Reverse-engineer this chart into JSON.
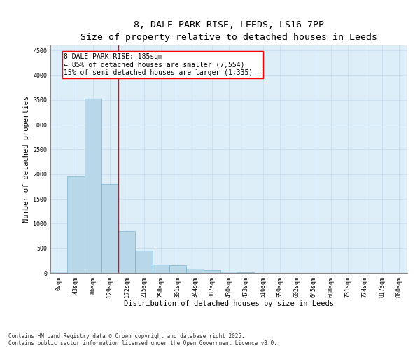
{
  "title_line1": "8, DALE PARK RISE, LEEDS, LS16 7PP",
  "title_line2": "Size of property relative to detached houses in Leeds",
  "xlabel": "Distribution of detached houses by size in Leeds",
  "ylabel": "Number of detached properties",
  "categories": [
    "0sqm",
    "43sqm",
    "86sqm",
    "129sqm",
    "172sqm",
    "215sqm",
    "258sqm",
    "301sqm",
    "344sqm",
    "387sqm",
    "430sqm",
    "473sqm",
    "516sqm",
    "559sqm",
    "602sqm",
    "645sqm",
    "688sqm",
    "731sqm",
    "774sqm",
    "817sqm",
    "860sqm"
  ],
  "values": [
    30,
    1950,
    3520,
    1800,
    850,
    450,
    170,
    155,
    90,
    55,
    30,
    15,
    5,
    3,
    2,
    1,
    1,
    0,
    0,
    0,
    0
  ],
  "bar_color": "#b8d8ea",
  "bar_edge_color": "#6aaac8",
  "grid_color": "#c8dff0",
  "background_color": "#deeef8",
  "vline_color": "red",
  "annotation_text": "8 DALE PARK RISE: 185sqm\n← 85% of detached houses are smaller (7,554)\n15% of semi-detached houses are larger (1,335) →",
  "annotation_box_color": "red",
  "ylim": [
    0,
    4600
  ],
  "yticks": [
    0,
    500,
    1000,
    1500,
    2000,
    2500,
    3000,
    3500,
    4000,
    4500
  ],
  "footnote": "Contains HM Land Registry data © Crown copyright and database right 2025.\nContains public sector information licensed under the Open Government Licence v3.0.",
  "title_fontsize": 9.5,
  "subtitle_fontsize": 8.5,
  "axis_label_fontsize": 7.5,
  "tick_fontsize": 6,
  "annotation_fontsize": 7,
  "footnote_fontsize": 5.5
}
